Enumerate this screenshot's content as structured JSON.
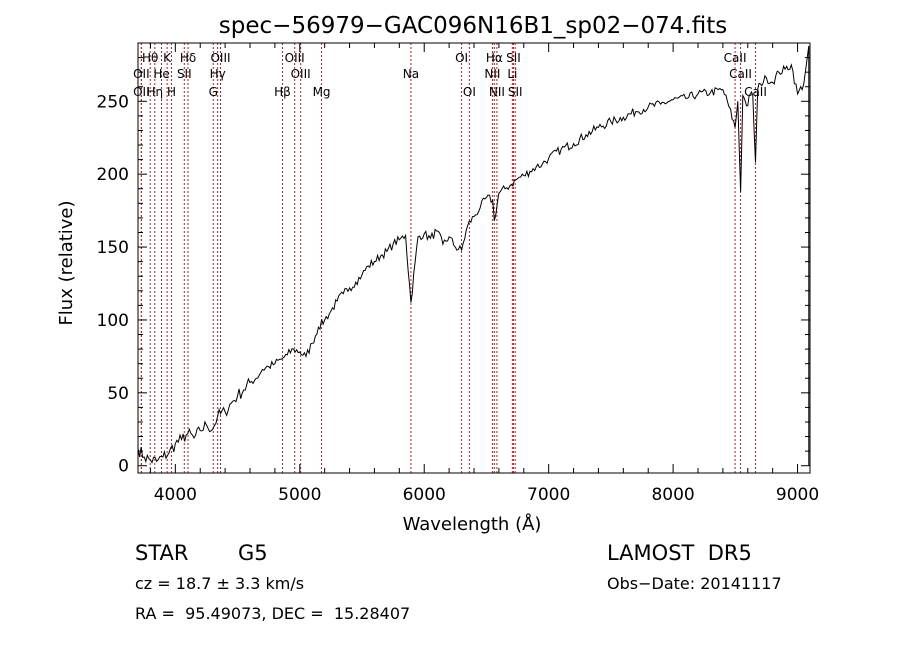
{
  "chart_data": {
    "type": "line",
    "title": "spec−56979−GAC096N16B1_sp02−074.fits",
    "xlabel": "Wavelength (Å)",
    "ylabel": "Flux (relative)",
    "xlim": [
      3700,
      9100
    ],
    "ylim": [
      -5,
      290
    ],
    "xticks": [
      4000,
      5000,
      6000,
      7000,
      8000,
      9000
    ],
    "yticks": [
      0,
      50,
      100,
      150,
      200,
      250
    ],
    "line_color": "#000000",
    "marker_color": "#b22222",
    "spectrum": {
      "x": [
        3700,
        3750,
        3800,
        3850,
        3900,
        3950,
        4000,
        4050,
        4100,
        4150,
        4200,
        4250,
        4300,
        4340,
        4400,
        4450,
        4500,
        4550,
        4600,
        4650,
        4700,
        4750,
        4800,
        4850,
        4900,
        4950,
        5000,
        5050,
        5100,
        5150,
        5200,
        5250,
        5300,
        5350,
        5400,
        5450,
        5500,
        5550,
        5600,
        5650,
        5700,
        5750,
        5800,
        5850,
        5893,
        5950,
        6000,
        6050,
        6100,
        6150,
        6200,
        6250,
        6300,
        6350,
        6400,
        6450,
        6500,
        6550,
        6563,
        6600,
        6650,
        6700,
        6750,
        6800,
        6850,
        6900,
        6950,
        7000,
        7100,
        7200,
        7300,
        7400,
        7500,
        7600,
        7700,
        7800,
        7900,
        8000,
        8100,
        8200,
        8300,
        8400,
        8450,
        8498,
        8520,
        8542,
        8560,
        8580,
        8600,
        8620,
        8640,
        8662,
        8680,
        8700,
        8750,
        8800,
        8850,
        8900,
        8950,
        9000,
        9050
      ],
      "y": [
        12,
        6,
        4,
        3,
        6,
        9,
        15,
        18,
        22,
        19,
        24,
        28,
        25,
        34,
        37,
        43,
        48,
        52,
        57,
        60,
        66,
        68,
        70,
        73,
        76,
        80,
        78,
        75,
        84,
        95,
        100,
        106,
        113,
        118,
        122,
        126,
        131,
        137,
        140,
        144,
        147,
        152,
        155,
        158,
        112,
        157,
        159,
        156,
        161,
        152,
        157,
        150,
        148,
        165,
        171,
        177,
        184,
        182,
        168,
        187,
        190,
        193,
        197,
        199,
        202,
        205,
        207,
        211,
        217,
        221,
        227,
        232,
        236,
        239,
        243,
        246,
        248,
        251,
        252,
        255,
        256,
        258,
        246,
        232,
        250,
        188,
        254,
        250,
        247,
        255,
        254,
        208,
        258,
        262,
        266,
        263,
        270,
        272,
        275,
        255,
        262
      ]
    },
    "spectral_lines": [
      {
        "label": "Hθ",
        "x": 3798,
        "row": 1
      },
      {
        "label": "OII",
        "x": 3727,
        "row": 2
      },
      {
        "label": "OII",
        "x": 3727,
        "row": 3
      },
      {
        "label": "He",
        "x": 3889,
        "row": 2
      },
      {
        "label": "K",
        "x": 3934,
        "row": 1
      },
      {
        "label": "Hη",
        "x": 3835,
        "row": 3
      },
      {
        "label": "H",
        "x": 3969,
        "row": 3
      },
      {
        "label": "SII",
        "x": 4072,
        "row": 2
      },
      {
        "label": "Hδ",
        "x": 4102,
        "row": 1
      },
      {
        "label": "OIII",
        "x": 4363,
        "row": 1
      },
      {
        "label": "Hγ",
        "x": 4340,
        "row": 2
      },
      {
        "label": "G",
        "x": 4305,
        "row": 3
      },
      {
        "label": "Hβ",
        "x": 4861,
        "row": 3
      },
      {
        "label": "OIII",
        "x": 4959,
        "row": 1
      },
      {
        "label": "OIII",
        "x": 5007,
        "row": 2
      },
      {
        "label": "Mg",
        "x": 5175,
        "row": 3
      },
      {
        "label": "Na",
        "x": 5893,
        "row": 2
      },
      {
        "label": "OI",
        "x": 6300,
        "row": 1
      },
      {
        "label": "OI",
        "x": 6363,
        "row": 3
      },
      {
        "label": "Hα",
        "x": 6563,
        "row": 1
      },
      {
        "label": "NII",
        "x": 6548,
        "row": 2
      },
      {
        "label": "NII",
        "x": 6584,
        "row": 3
      },
      {
        "label": "SII",
        "x": 6717,
        "row": 1
      },
      {
        "label": "Li",
        "x": 6708,
        "row": 2
      },
      {
        "label": "SII",
        "x": 6731,
        "row": 3
      },
      {
        "label": "CaII",
        "x": 8498,
        "row": 1
      },
      {
        "label": "CaII",
        "x": 8542,
        "row": 2
      },
      {
        "label": "CaII",
        "x": 8662,
        "row": 3
      }
    ]
  },
  "info": {
    "object_type": "STAR",
    "subclass": "G5",
    "survey": "LAMOST  DR5",
    "redshift": "cz = 18.7 ± 3.3 km/s",
    "obs_date": "Obs−Date: 20141117",
    "coords": "RA =  95.49073, DEC =  15.28407"
  }
}
